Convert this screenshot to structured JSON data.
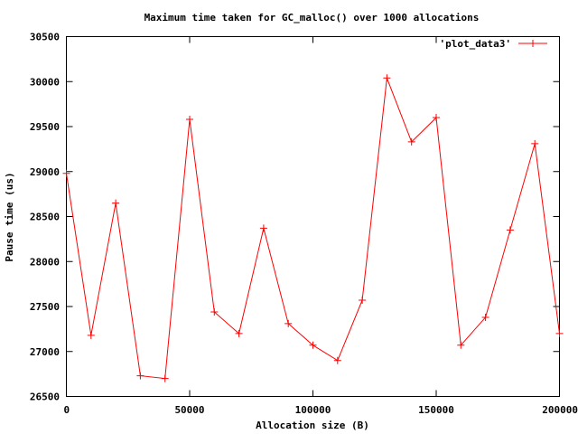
{
  "chart_data": {
    "type": "line",
    "title": "Maximum time taken for GC_malloc() over 1000 allocations",
    "xlabel": "Allocation size (B)",
    "ylabel": "Pause time (us)",
    "xlim": [
      0,
      200000
    ],
    "ylim": [
      26500,
      30500
    ],
    "xticks": [
      0,
      50000,
      100000,
      150000,
      200000
    ],
    "yticks": [
      26500,
      27000,
      27500,
      28000,
      28500,
      29000,
      29500,
      30000,
      30500
    ],
    "xtick_labels": [
      "0",
      "50000",
      "100000",
      "150000",
      "200000"
    ],
    "ytick_labels": [
      "26500",
      "27000",
      "27500",
      "28000",
      "28500",
      "29000",
      "29500",
      "30000",
      "30500"
    ],
    "grid": false,
    "legend": "top-right",
    "series": [
      {
        "name": "'plot_data3'",
        "color": "#ff0000",
        "marker": "plus",
        "x": [
          0,
          10000,
          20000,
          30000,
          40000,
          50000,
          60000,
          70000,
          80000,
          90000,
          100000,
          110000,
          120000,
          130000,
          140000,
          150000,
          160000,
          170000,
          180000,
          190000,
          200000
        ],
        "y": [
          28980,
          27180,
          28650,
          26730,
          26700,
          29580,
          27440,
          27200,
          28370,
          27310,
          27070,
          26900,
          27570,
          30040,
          29330,
          29600,
          27070,
          27380,
          28350,
          29310,
          27200
        ]
      }
    ]
  }
}
